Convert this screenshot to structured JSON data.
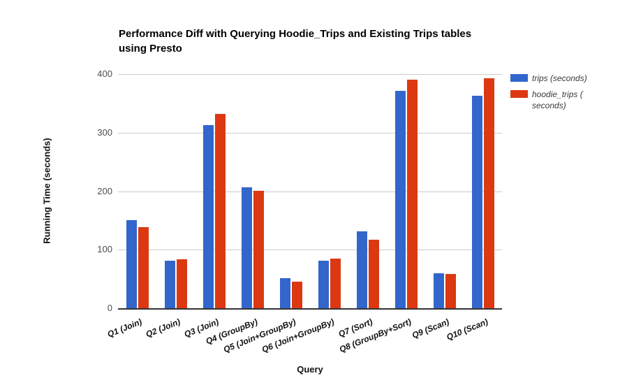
{
  "chart_data": {
    "type": "bar",
    "title": "Performance Diff with Querying Hoodie_Trips and Existing Trips tables using Presto",
    "title_lines": [
      "Performance Diff with Querying Hoodie_Trips and Existing Trips tables",
      "using Presto"
    ],
    "xlabel": "Query",
    "ylabel": "Running Time (seconds)",
    "ylim": [
      0,
      400
    ],
    "yticks": [
      0,
      100,
      200,
      300,
      400
    ],
    "grid": true,
    "legend_position": "right",
    "categories": [
      "Q1 (Join)",
      "Q2 (Join)",
      "Q3 (Join)",
      "Q4 (GroupBy)",
      "Q5 (Join+GroupBy)",
      "Q6 (Join+GroupBy)",
      "Q7 (Sort)",
      "Q8 (GroupBy+Sort)",
      "Q9 (Scan)",
      "Q10 (Scan)"
    ],
    "series": [
      {
        "name": "trips (seconds)",
        "color": "#3366cc",
        "values": [
          150,
          81,
          313,
          207,
          51,
          81,
          131,
          371,
          60,
          363
        ]
      },
      {
        "name": "hoodie_trips ( seconds)",
        "color": "#dc3912",
        "values": [
          138,
          84,
          332,
          201,
          45,
          85,
          117,
          390,
          59,
          393
        ]
      }
    ],
    "gridline_color": "#cccccc",
    "baseline_color": "#333333"
  }
}
